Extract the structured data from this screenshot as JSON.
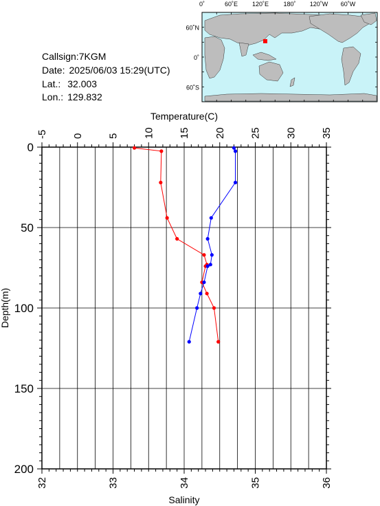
{
  "station": {
    "callsign_label": "Callsign:",
    "callsign": "7KGM",
    "date_label": "Date:",
    "date": "2025/06/03 15:29(UTC)",
    "lat_label": "Lat.:",
    "lat": "32.003",
    "lon_label": "Lon.:",
    "lon": "129.832"
  },
  "map": {
    "top_labels": [
      "0˚",
      "60˚E",
      "120˚E",
      "180˚",
      "120˚W",
      "60˚W"
    ],
    "lat_labels": [
      "60˚N",
      "0˚",
      "60˚S"
    ],
    "ocean_color": "#c9f3f8",
    "land_color": "#bdbdbd",
    "marker_color": "#ff0000"
  },
  "chart_data": {
    "type": "line",
    "top_axis": {
      "label": "Temperature(C)",
      "range": [
        -5,
        35
      ],
      "ticks": [
        "-5",
        "0",
        "5",
        "10",
        "15",
        "20",
        "25",
        "30",
        "35"
      ]
    },
    "bottom_axis": {
      "label": "Salinity",
      "range": [
        32,
        36
      ],
      "ticks": [
        "32",
        "33",
        "34",
        "35",
        "36"
      ]
    },
    "y_axis": {
      "label": "Depth(m)",
      "range": [
        0,
        200
      ],
      "inverted": true,
      "ticks": [
        "0",
        "50",
        "100",
        "150",
        "200"
      ]
    },
    "grid": true,
    "series": [
      {
        "color": "#ff0000",
        "axis": "top",
        "points": [
          [
            8.0,
            0.5
          ],
          [
            11.8,
            2.5
          ],
          [
            11.7,
            22
          ],
          [
            12.6,
            44
          ],
          [
            14.0,
            57
          ],
          [
            17.8,
            67
          ],
          [
            18.2,
            73
          ],
          [
            18.0,
            74
          ],
          [
            17.5,
            84
          ],
          [
            18.2,
            91
          ],
          [
            19.2,
            100
          ],
          [
            19.8,
            121
          ]
        ]
      },
      {
        "color": "#0000ff",
        "axis": "bottom",
        "points": [
          [
            34.7,
            0.5
          ],
          [
            34.72,
            2.5
          ],
          [
            34.72,
            22
          ],
          [
            34.38,
            44
          ],
          [
            34.33,
            57
          ],
          [
            34.39,
            67
          ],
          [
            34.37,
            73
          ],
          [
            34.33,
            74
          ],
          [
            34.28,
            84
          ],
          [
            34.23,
            91
          ],
          [
            34.18,
            100
          ],
          [
            34.07,
            121
          ]
        ]
      }
    ]
  }
}
